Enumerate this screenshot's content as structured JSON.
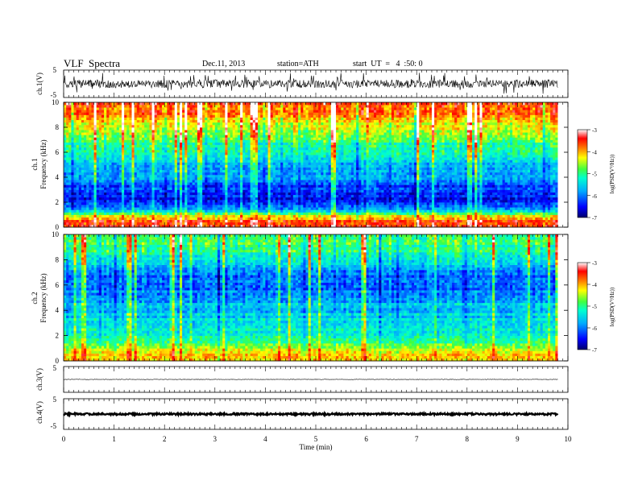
{
  "header": {
    "title": "VLF  Spectra",
    "date": "Dec.11, 2013",
    "station": "station=ATH",
    "start": "start  UT  =   4  :50: 0"
  },
  "chart_data": [
    {
      "type": "line",
      "name": "ch1-waveform",
      "ylabel": "ch.1(V)",
      "ylim": [
        -5,
        5
      ],
      "yticks": [
        "5",
        "-5"
      ],
      "xlim": [
        0,
        10
      ],
      "x_extent": 9.8,
      "description_values": {
        "baseline": 0,
        "typical_amplitude": 1.5,
        "max_spike": 4
      }
    },
    {
      "type": "heatmap",
      "name": "ch1-spectrogram",
      "ylabel": "Frequency  (kHz)",
      "ylabel_channel": "ch.1",
      "ylim": [
        0,
        10
      ],
      "yticks": [
        "0",
        "2",
        "4",
        "6",
        "8",
        "10"
      ],
      "xlim": [
        0,
        10
      ],
      "x_extent": 9.8,
      "value_range": [
        -7,
        -3
      ],
      "colorbar": {
        "label": "log(PSD(V²/Hz))",
        "ticks": [
          "-3",
          "-4",
          "-5",
          "-6",
          "-7"
        ]
      },
      "profile_khz_to_level": [
        [
          0,
          -3.6
        ],
        [
          0.5,
          -3.5
        ],
        [
          1,
          -4.6
        ],
        [
          1.6,
          -6.2
        ],
        [
          2.4,
          -6.5
        ],
        [
          3.2,
          -6.3
        ],
        [
          4,
          -5.8
        ],
        [
          5,
          -5.6
        ],
        [
          6,
          -5.3
        ],
        [
          7,
          -4.9
        ],
        [
          8,
          -4.4
        ],
        [
          9,
          -3.9
        ],
        [
          10,
          -3.5
        ]
      ]
    },
    {
      "type": "heatmap",
      "name": "ch2-spectrogram",
      "ylabel": "Frequency  (kHz)",
      "ylabel_channel": "ch.2",
      "ylim": [
        0,
        10
      ],
      "yticks": [
        "0",
        "2",
        "4",
        "6",
        "8",
        "10"
      ],
      "xlim": [
        0,
        10
      ],
      "x_extent": 9.8,
      "value_range": [
        -7,
        -3
      ],
      "colorbar": {
        "label": "log(PSD(V²/Hz))",
        "ticks": [
          "-3",
          "-4",
          "-5",
          "-6",
          "-7"
        ]
      },
      "profile_khz_to_level": [
        [
          0,
          -4.2
        ],
        [
          0.5,
          -4.0
        ],
        [
          1,
          -4.5
        ],
        [
          2,
          -5.2
        ],
        [
          3,
          -5.4
        ],
        [
          4,
          -5.6
        ],
        [
          5,
          -5.8
        ],
        [
          6,
          -6.2
        ],
        [
          7,
          -6.0
        ],
        [
          8,
          -5.4
        ],
        [
          9,
          -5.0
        ],
        [
          10,
          -4.8
        ]
      ]
    },
    {
      "type": "line",
      "name": "ch3-waveform",
      "ylabel": "ch.3(V)",
      "ylim": [
        -5,
        5
      ],
      "yticks": [
        "5",
        "-5"
      ],
      "xlim": [
        0,
        10
      ],
      "x_extent": 9.8,
      "description_values": {
        "baseline": 0,
        "typical_amplitude": 0.1
      }
    },
    {
      "type": "line",
      "name": "ch4-waveform",
      "ylabel": "ch.4(V)",
      "ylim": [
        -5,
        5
      ],
      "yticks": [
        "5",
        "-5"
      ],
      "xlim": [
        0,
        10
      ],
      "x_extent": 9.8,
      "description_values": {
        "baseline": 0,
        "typical_amplitude": 0.3
      }
    }
  ],
  "xaxis": {
    "label": "Time  (min)",
    "ticks": [
      "0",
      "1",
      "2",
      "3",
      "4",
      "5",
      "6",
      "7",
      "8",
      "9",
      "10"
    ]
  }
}
